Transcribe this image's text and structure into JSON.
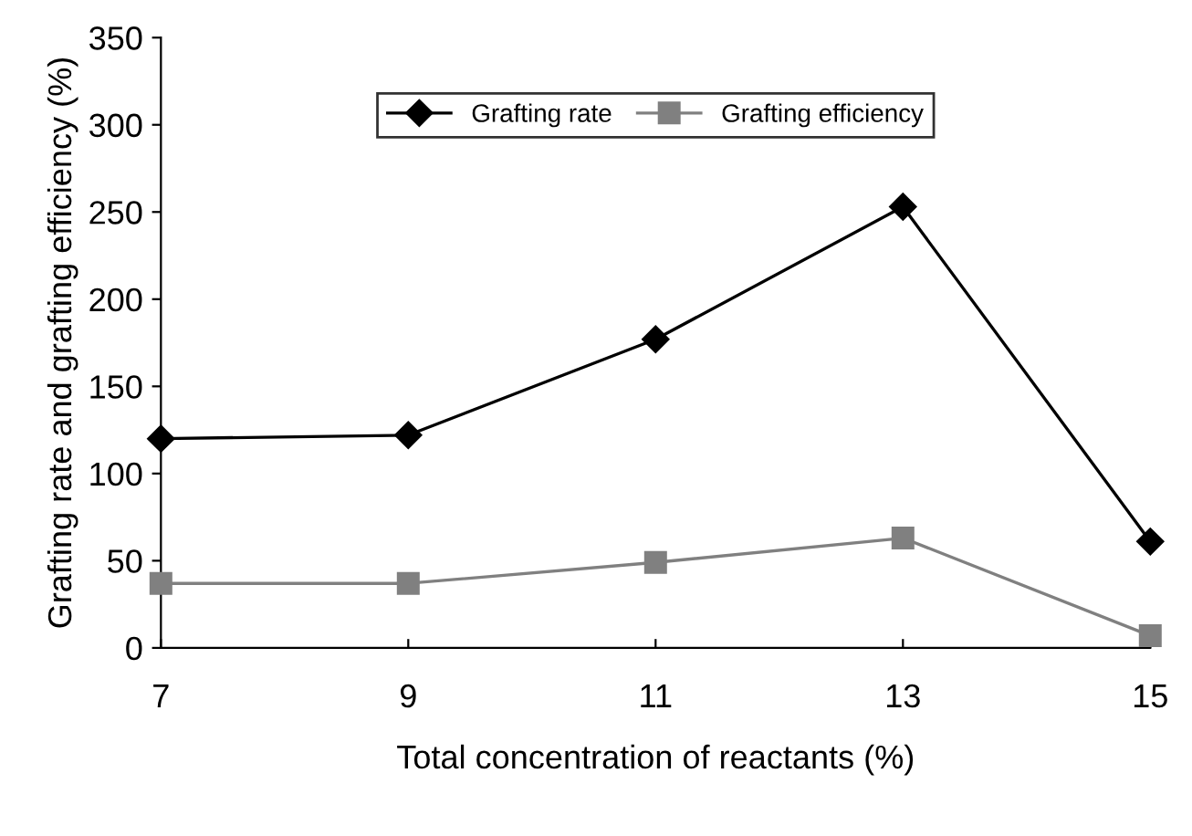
{
  "chart_data": {
    "type": "line",
    "xlabel": "Total concentration of reactants (%)",
    "ylabel": "Grafting rate and grafting efficiency (%)",
    "x": [
      7,
      9,
      11,
      13,
      15
    ],
    "xlim": [
      7,
      15
    ],
    "xticks": [
      7,
      9,
      11,
      13,
      15
    ],
    "ylim": [
      0,
      350
    ],
    "yticks": [
      0,
      50,
      100,
      150,
      200,
      250,
      300,
      350
    ],
    "series": [
      {
        "name": "Grafting rate",
        "color": "#000000",
        "marker": "diamond",
        "values": [
          120,
          122,
          177,
          253,
          61
        ]
      },
      {
        "name": "Grafting efficiency",
        "color": "#808080",
        "marker": "square",
        "values": [
          37,
          37,
          49,
          63,
          7
        ]
      }
    ],
    "legend": "top",
    "grid": false
  }
}
